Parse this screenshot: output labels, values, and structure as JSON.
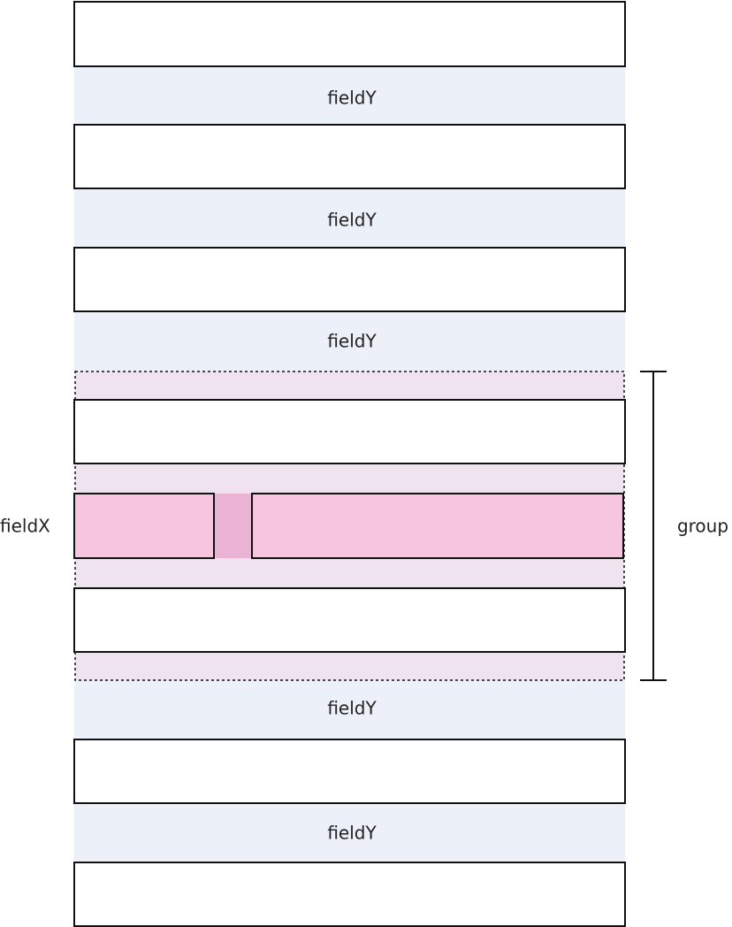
{
  "field_y_labels": [
    "fieldY",
    "fieldY",
    "fieldY",
    "fieldY",
    "fieldY"
  ],
  "field_x_label": "fieldX",
  "group_label": "group"
}
